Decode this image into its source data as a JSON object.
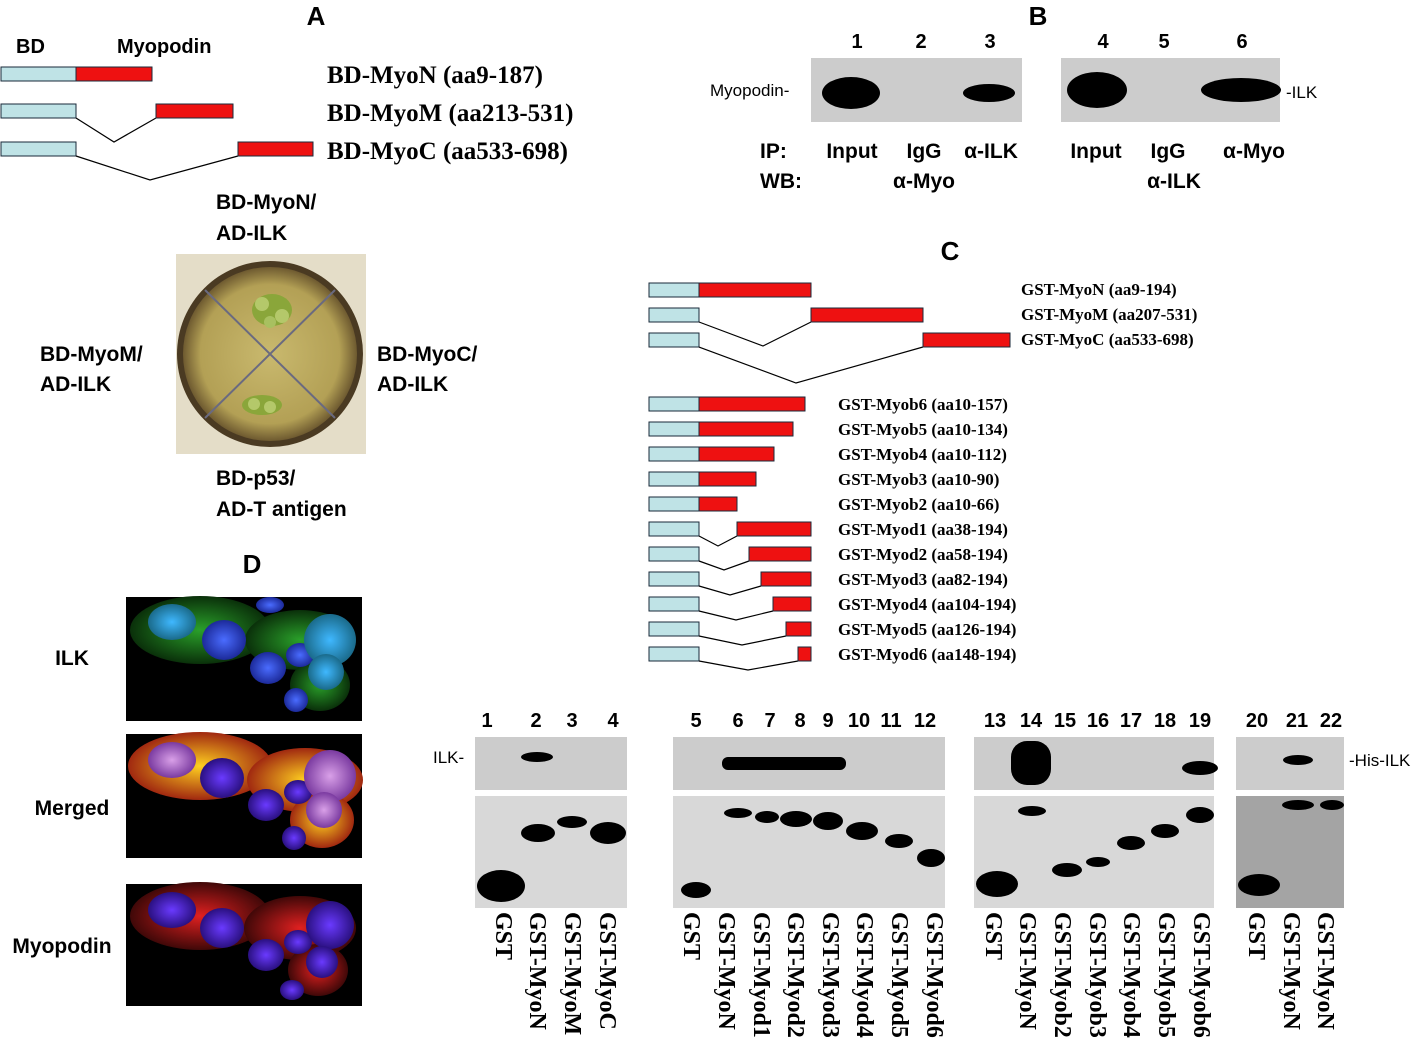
{
  "panels": {
    "A": {
      "letter": "A",
      "bd_label": "BD",
      "myopodin_label": "Myopodin",
      "constructs": [
        "BD-MyoN (aa9-187)",
        "BD-MyoM (aa213-531)",
        "BD-MyoC (aa533-698)"
      ],
      "plate_labels": {
        "top": [
          "BD-MyoN/",
          "AD-ILK"
        ],
        "left": [
          "BD-MyoM/",
          "AD-ILK"
        ],
        "right": [
          "BD-MyoC/",
          "AD-ILK"
        ],
        "bottom": [
          "BD-p53/",
          "AD-T antigen"
        ]
      }
    },
    "B": {
      "letter": "B",
      "lane_numbers": [
        "1",
        "2",
        "3",
        "4",
        "5",
        "6"
      ],
      "left_band_label": "Myopodin-",
      "right_band_label": "-ILK",
      "ip_label": "IP:",
      "wb_label": "WB:",
      "ip_values": [
        "Input",
        "IgG",
        "α-ILK",
        "Input",
        "IgG",
        "α-Myo"
      ],
      "wb_values": [
        "α-Myo",
        "α-ILK"
      ]
    },
    "C": {
      "letter": "C",
      "constructs_group1": [
        "GST-MyoN (aa9-194)",
        "GST-MyoM (aa207-531)",
        "GST-MyoC (aa533-698)"
      ],
      "constructs_group2": [
        "GST-Myob6 (aa10-157)",
        "GST-Myob5 (aa10-134)",
        "GST-Myob4 (aa10-112)",
        "GST-Myob3 (aa10-90)",
        "GST-Myob2 (aa10-66)",
        "GST-Myod1 (aa38-194)",
        "GST-Myod2 (aa58-194)",
        "GST-Myod3 (aa82-194)",
        "GST-Myod4 (aa104-194)",
        "GST-Myod5 (aa126-194)",
        "GST-Myod6 (aa148-194)"
      ],
      "lane_numbers": [
        "1",
        "2",
        "3",
        "4",
        "5",
        "6",
        "7",
        "8",
        "9",
        "10",
        "11",
        "12",
        "13",
        "14",
        "15",
        "16",
        "17",
        "18",
        "19",
        "20",
        "21",
        "22"
      ],
      "ilk_label": "ILK-",
      "his_ilk_label": "-His-ILK",
      "lane_labels": [
        "GST",
        "GST-MyoN",
        "GST-MyoM",
        "GST-MyoC",
        "GST",
        "GST-MyoN",
        "GST-Myod1",
        "GST-Myod2",
        "GST-Myod3",
        "GST-Myod4",
        "GST-Myod5",
        "GST-Myod6",
        "GST",
        "GST-MyoN",
        "GST-Myob2",
        "GST-Myob3",
        "GST-Myob4",
        "GST-Myob5",
        "GST-Myob6",
        "GST",
        "GST-MyoN",
        "GST-MyoN"
      ]
    },
    "D": {
      "letter": "D",
      "row_labels": [
        "ILK",
        "Merged",
        "Myopodin"
      ]
    }
  },
  "colors": {
    "bd_box": "#bfe3e6",
    "myopodin_box": "#ee1111",
    "blot_background": "#cccccc",
    "band": "#000000"
  }
}
